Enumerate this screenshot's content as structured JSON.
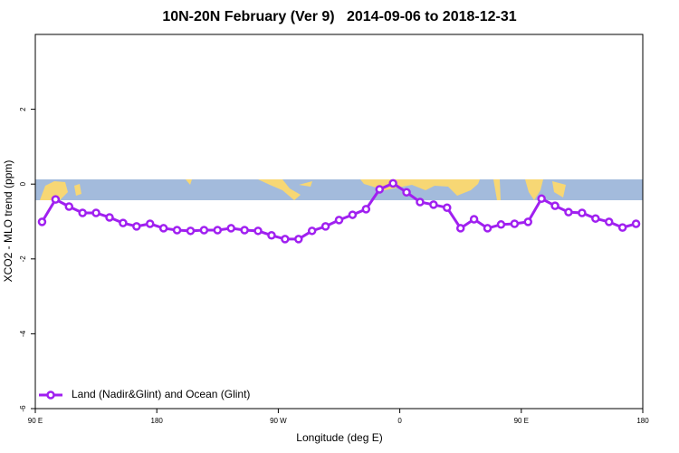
{
  "chart_data": {
    "type": "line",
    "title": "10N-20N February (Ver 9)   2014-09-06 to 2018-12-31",
    "x_label": "Longitude (deg E)",
    "y_label": "XCO2 - MLO trend (ppm)",
    "x": [
      95,
      105,
      115,
      125,
      135,
      145,
      155,
      165,
      175,
      185,
      195,
      205,
      215,
      225,
      235,
      245,
      255,
      265,
      275,
      285,
      295,
      305,
      315,
      325,
      335,
      345,
      355,
      365,
      375,
      385,
      395,
      405,
      415,
      425,
      435,
      445,
      455,
      465,
      475,
      485,
      495,
      505,
      515,
      525,
      535
    ],
    "series": [
      {
        "name": "Land (Nadir&Glint) and Ocean (Glint)",
        "color": "#a020f0",
        "values": [
          -1.01,
          -0.41,
          -0.6,
          -0.77,
          -0.77,
          -0.89,
          -1.04,
          -1.13,
          -1.06,
          -1.18,
          -1.23,
          -1.25,
          -1.23,
          -1.23,
          -1.18,
          -1.23,
          -1.25,
          -1.37,
          -1.47,
          -1.47,
          -1.25,
          -1.13,
          -0.96,
          -0.82,
          -0.67,
          -0.14,
          0.02,
          -0.22,
          -0.48,
          -0.55,
          -0.63,
          -1.18,
          -0.94,
          -1.18,
          -1.08,
          -1.06,
          -1.01,
          -0.39,
          -0.58,
          -0.75,
          -0.77,
          -0.92,
          -1.01,
          -1.16,
          -1.06
        ]
      }
    ],
    "xlim": [
      90,
      540
    ],
    "xticks": [
      {
        "value": 90,
        "label": "90 E"
      },
      {
        "value": 180,
        "label": "180"
      },
      {
        "value": 270,
        "label": "90 W"
      },
      {
        "value": 360,
        "label": "0"
      },
      {
        "value": 450,
        "label": "90 E"
      },
      {
        "value": 540,
        "label": "180"
      }
    ],
    "ylim": [
      -6,
      4
    ],
    "yticks": [
      -6,
      -4,
      -2,
      0,
      2
    ],
    "legend": "bottomleft"
  }
}
